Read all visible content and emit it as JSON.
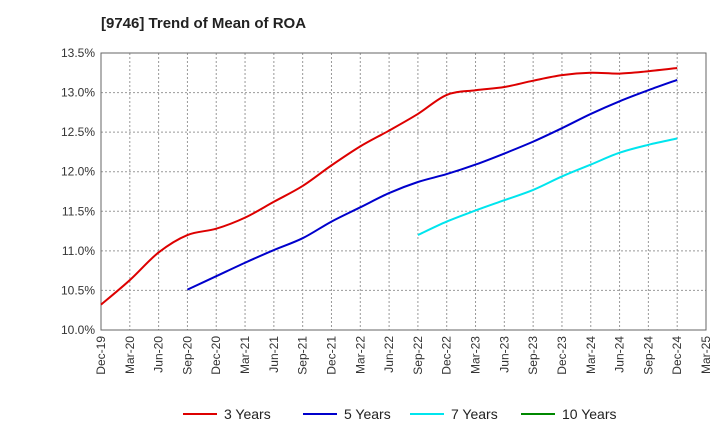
{
  "chart_data": {
    "type": "line",
    "title": "[9746]  Trend of Mean of ROA",
    "xlabel": "",
    "ylabel": "",
    "ylim": [
      10.0,
      13.5
    ],
    "y_ticks": [
      10.0,
      10.5,
      11.0,
      11.5,
      12.0,
      12.5,
      13.0,
      13.5
    ],
    "y_tick_labels": [
      "10.0%",
      "10.5%",
      "11.0%",
      "11.5%",
      "12.0%",
      "12.5%",
      "13.0%",
      "13.5%"
    ],
    "categories": [
      "Dec-19",
      "Mar-20",
      "Jun-20",
      "Sep-20",
      "Dec-20",
      "Mar-21",
      "Jun-21",
      "Sep-21",
      "Dec-21",
      "Mar-22",
      "Jun-22",
      "Sep-22",
      "Dec-22",
      "Mar-23",
      "Jun-23",
      "Sep-23",
      "Dec-23",
      "Mar-24",
      "Jun-24",
      "Sep-24",
      "Dec-24",
      "Mar-25"
    ],
    "grid": true,
    "legend_position": "bottom",
    "series": [
      {
        "name": "3 Years",
        "color": "#dd0000",
        "values": [
          10.32,
          10.63,
          10.98,
          11.2,
          11.28,
          11.42,
          11.62,
          11.82,
          12.08,
          12.32,
          12.52,
          12.73,
          12.97,
          13.03,
          13.07,
          13.15,
          13.22,
          13.25,
          13.24,
          13.27,
          13.31,
          null
        ]
      },
      {
        "name": "5 Years",
        "color": "#0000cc",
        "values": [
          null,
          null,
          null,
          10.51,
          10.68,
          10.85,
          11.01,
          11.16,
          11.37,
          11.55,
          11.73,
          11.87,
          11.97,
          12.09,
          12.23,
          12.38,
          12.55,
          12.73,
          12.89,
          13.03,
          13.16,
          null
        ]
      },
      {
        "name": "7 Years",
        "color": "#00e5ee",
        "values": [
          null,
          null,
          null,
          null,
          null,
          null,
          null,
          null,
          null,
          null,
          null,
          11.2,
          11.37,
          11.51,
          11.64,
          11.77,
          11.94,
          12.09,
          12.24,
          12.34,
          12.42,
          null
        ]
      },
      {
        "name": "10 Years",
        "color": "#008800",
        "values": [
          null,
          null,
          null,
          null,
          null,
          null,
          null,
          null,
          null,
          null,
          null,
          null,
          null,
          null,
          null,
          null,
          null,
          null,
          null,
          null,
          null,
          null
        ]
      }
    ]
  }
}
